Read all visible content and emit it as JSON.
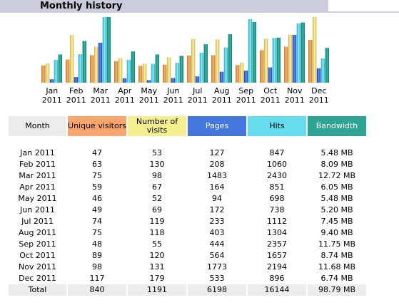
{
  "page": {
    "title": "Monthly history"
  },
  "colors": {
    "unique_visitors": "#f9a56b",
    "number_of_visits": "#f4f090",
    "pages": "#4477dd",
    "hits": "#66ddee",
    "bandwidth": "#2ea495",
    "header_bar": "#ccccdd"
  },
  "table": {
    "headers": {
      "month": "Month",
      "unique_visitors": "Unique visitors",
      "number_of_visits": "Number of visits",
      "pages": "Pages",
      "hits": "Hits",
      "bandwidth": "Bandwidth"
    },
    "rows": [
      [
        "Jan 2011",
        "47",
        "53",
        "127",
        "847",
        "5.48 MB"
      ],
      [
        "Feb 2011",
        "63",
        "130",
        "208",
        "1060",
        "8.09 MB"
      ],
      [
        "Mar 2011",
        "75",
        "98",
        "1483",
        "2430",
        "12.72 MB"
      ],
      [
        "Apr 2011",
        "59",
        "67",
        "164",
        "851",
        "6.05 MB"
      ],
      [
        "May 2011",
        "46",
        "52",
        "94",
        "698",
        "5.48 MB"
      ],
      [
        "Jun 2011",
        "49",
        "69",
        "172",
        "738",
        "5.20 MB"
      ],
      [
        "Jul 2011",
        "74",
        "119",
        "233",
        "1112",
        "7.45 MB"
      ],
      [
        "Aug 2011",
        "75",
        "118",
        "403",
        "1304",
        "9.40 MB"
      ],
      [
        "Sep 2011",
        "48",
        "55",
        "444",
        "2357",
        "11.75 MB"
      ],
      [
        "Oct 2011",
        "89",
        "120",
        "564",
        "1657",
        "8.74 MB"
      ],
      [
        "Nov 2011",
        "98",
        "131",
        "1773",
        "2194",
        "11.68 MB"
      ],
      [
        "Dec 2011",
        "117",
        "179",
        "533",
        "896",
        "6.74 MB"
      ]
    ],
    "total": [
      "Total",
      "840",
      "1191",
      "6198",
      "16144",
      "98.79 MB"
    ]
  },
  "chart_data": {
    "type": "bar",
    "title": "Monthly history",
    "categories": [
      [
        "Jan",
        "2011"
      ],
      [
        "Feb",
        "2011"
      ],
      [
        "Mar",
        "2011"
      ],
      [
        "Apr",
        "2011"
      ],
      [
        "May",
        "2011"
      ],
      [
        "Jun",
        "2011"
      ],
      [
        "Jul",
        "2011"
      ],
      [
        "Aug",
        "2011"
      ],
      [
        "Sep",
        "2011"
      ],
      [
        "Oct",
        "2011"
      ],
      [
        "Nov",
        "2011"
      ],
      [
        "Dec",
        "2011"
      ]
    ],
    "series": [
      {
        "key": "unique_visitors",
        "color": "#f9a56b",
        "values": [
          47,
          63,
          75,
          59,
          46,
          49,
          74,
          75,
          48,
          89,
          98,
          117
        ],
        "max": 179
      },
      {
        "key": "number_of_visits",
        "color": "#f4f090",
        "values": [
          53,
          130,
          98,
          67,
          52,
          69,
          119,
          118,
          55,
          120,
          131,
          179
        ],
        "max": 179
      },
      {
        "key": "pages",
        "color": "#4477dd",
        "values": [
          127,
          208,
          1483,
          164,
          94,
          172,
          233,
          403,
          444,
          564,
          1773,
          533
        ],
        "max": 2430
      },
      {
        "key": "hits",
        "color": "#66ddee",
        "values": [
          847,
          1060,
          2430,
          851,
          698,
          738,
          1112,
          1304,
          2357,
          1657,
          2194,
          896
        ],
        "max": 2430
      },
      {
        "key": "bandwidth_mb",
        "color": "#2ea495",
        "values": [
          5.48,
          8.09,
          12.72,
          6.05,
          5.48,
          5.2,
          7.45,
          9.4,
          11.75,
          8.74,
          11.68,
          6.74
        ],
        "max": 12.72
      }
    ]
  }
}
